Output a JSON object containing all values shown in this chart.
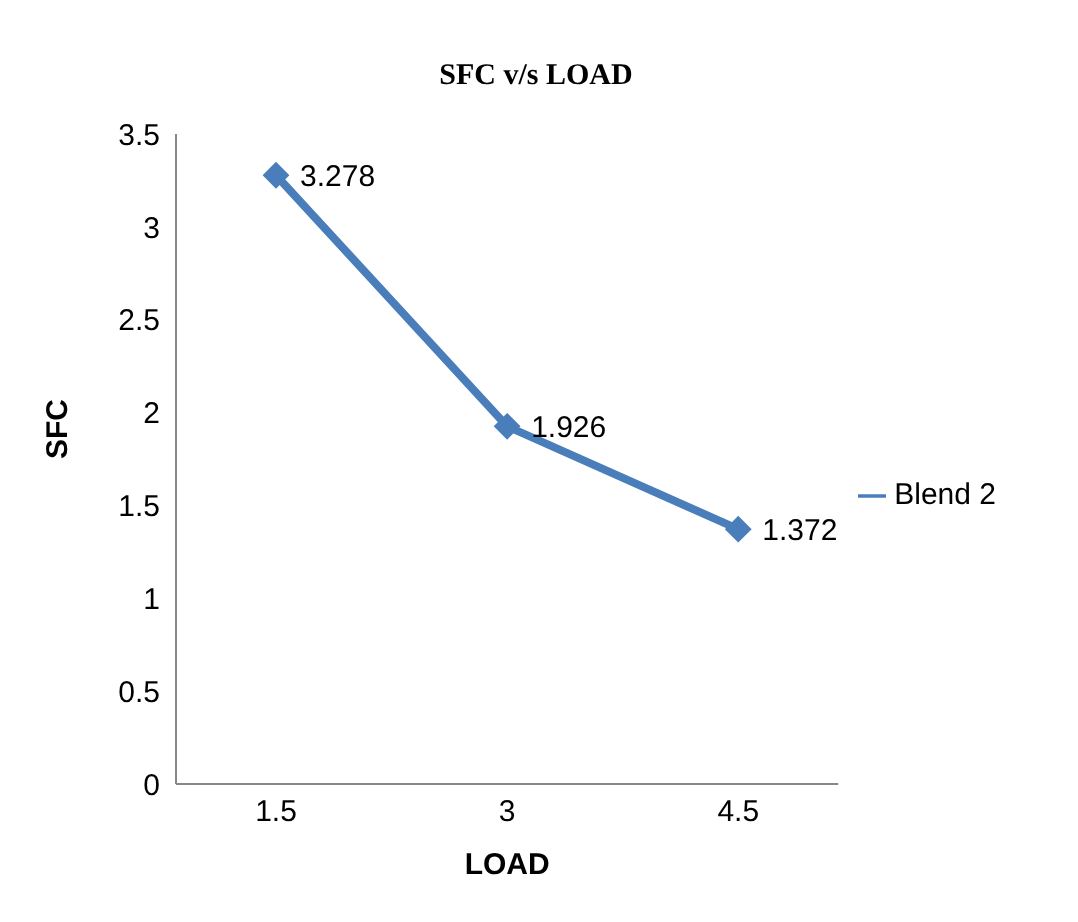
{
  "chart_data": {
    "type": "line",
    "title": "SFC v/s LOAD",
    "xlabel": "LOAD",
    "ylabel": "SFC",
    "categories": [
      "1.5",
      "3",
      "4.5"
    ],
    "series": [
      {
        "name": "Blend 2",
        "color": "#4a7ebb",
        "values": [
          3.278,
          1.926,
          1.372
        ]
      }
    ],
    "ylim": [
      0,
      3.5
    ],
    "yticks": [
      0,
      0.5,
      1,
      1.5,
      2,
      2.5,
      3,
      3.5
    ],
    "grid": false,
    "legend": "right",
    "marker": "diamond",
    "line_style": "solid",
    "data_labels": true
  }
}
